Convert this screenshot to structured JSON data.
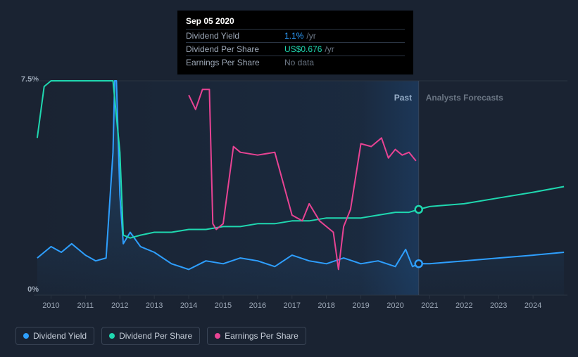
{
  "tooltip": {
    "date": "Sep 05 2020",
    "rows": [
      {
        "label": "Dividend Yield",
        "value": "1.1%",
        "unit": "/yr",
        "color": "val-blue"
      },
      {
        "label": "Dividend Per Share",
        "value": "US$0.676",
        "unit": "/yr",
        "color": "val-teal"
      },
      {
        "label": "Earnings Per Share",
        "value": "No data",
        "unit": "",
        "color": "val-muted"
      }
    ]
  },
  "chart": {
    "y_max_label": "7.5%",
    "y_min_label": "0%",
    "x_labels": [
      "2010",
      "2011",
      "2012",
      "2013",
      "2014",
      "2015",
      "2016",
      "2017",
      "2018",
      "2019",
      "2020",
      "2021",
      "2022",
      "2023",
      "2024"
    ],
    "x_range": [
      2009.5,
      2025.0
    ],
    "y_range": [
      0,
      7.5
    ],
    "region_past_label": "Past",
    "region_forecast_label": "Analysts Forecasts",
    "past_split_x": 2020.68,
    "hover_x": 2020.68,
    "colors": {
      "dividend_yield": "#2e9fff",
      "dividend_per_share": "#1fd8b0",
      "earnings_per_share": "#e84393",
      "grid": "#2a3442",
      "region_past": "#1f5c9e",
      "marker_fill": "#1a2332"
    },
    "series": {
      "dividend_yield": [
        [
          2009.6,
          1.3
        ],
        [
          2010.0,
          1.7
        ],
        [
          2010.3,
          1.5
        ],
        [
          2010.6,
          1.8
        ],
        [
          2011.0,
          1.4
        ],
        [
          2011.3,
          1.2
        ],
        [
          2011.6,
          1.3
        ],
        [
          2011.8,
          5.0
        ],
        [
          2011.85,
          7.5
        ],
        [
          2011.9,
          7.5
        ],
        [
          2012.0,
          3.5
        ],
        [
          2012.1,
          1.8
        ],
        [
          2012.3,
          2.2
        ],
        [
          2012.6,
          1.7
        ],
        [
          2013.0,
          1.5
        ],
        [
          2013.5,
          1.1
        ],
        [
          2014.0,
          0.9
        ],
        [
          2014.5,
          1.2
        ],
        [
          2015.0,
          1.1
        ],
        [
          2015.5,
          1.3
        ],
        [
          2016.0,
          1.2
        ],
        [
          2016.5,
          1.0
        ],
        [
          2017.0,
          1.4
        ],
        [
          2017.5,
          1.2
        ],
        [
          2018.0,
          1.1
        ],
        [
          2018.5,
          1.3
        ],
        [
          2019.0,
          1.1
        ],
        [
          2019.5,
          1.2
        ],
        [
          2020.0,
          1.0
        ],
        [
          2020.3,
          1.6
        ],
        [
          2020.5,
          1.0
        ],
        [
          2020.68,
          1.1
        ],
        [
          2021.0,
          1.1
        ],
        [
          2022.0,
          1.2
        ],
        [
          2023.0,
          1.3
        ],
        [
          2024.0,
          1.4
        ],
        [
          2024.9,
          1.5
        ]
      ],
      "dividend_per_share": [
        [
          2009.6,
          5.5
        ],
        [
          2009.8,
          7.3
        ],
        [
          2010.0,
          7.5
        ],
        [
          2011.0,
          7.5
        ],
        [
          2011.8,
          7.5
        ],
        [
          2012.0,
          5.0
        ],
        [
          2012.1,
          2.1
        ],
        [
          2012.3,
          2.0
        ],
        [
          2012.6,
          2.1
        ],
        [
          2013.0,
          2.2
        ],
        [
          2013.5,
          2.2
        ],
        [
          2014.0,
          2.3
        ],
        [
          2014.5,
          2.3
        ],
        [
          2015.0,
          2.4
        ],
        [
          2015.5,
          2.4
        ],
        [
          2016.0,
          2.5
        ],
        [
          2016.5,
          2.5
        ],
        [
          2017.0,
          2.6
        ],
        [
          2017.5,
          2.6
        ],
        [
          2018.0,
          2.7
        ],
        [
          2018.5,
          2.7
        ],
        [
          2019.0,
          2.7
        ],
        [
          2019.5,
          2.8
        ],
        [
          2020.0,
          2.9
        ],
        [
          2020.4,
          2.9
        ],
        [
          2020.68,
          3.0
        ],
        [
          2021.0,
          3.1
        ],
        [
          2022.0,
          3.2
        ],
        [
          2023.0,
          3.4
        ],
        [
          2024.0,
          3.6
        ],
        [
          2024.9,
          3.8
        ]
      ],
      "earnings_per_share": [
        [
          2014.0,
          7.0
        ],
        [
          2014.2,
          6.5
        ],
        [
          2014.4,
          7.2
        ],
        [
          2014.6,
          7.2
        ],
        [
          2014.7,
          2.5
        ],
        [
          2014.8,
          2.3
        ],
        [
          2015.0,
          2.5
        ],
        [
          2015.3,
          5.2
        ],
        [
          2015.5,
          5.0
        ],
        [
          2016.0,
          4.9
        ],
        [
          2016.5,
          5.0
        ],
        [
          2017.0,
          2.8
        ],
        [
          2017.3,
          2.6
        ],
        [
          2017.5,
          3.2
        ],
        [
          2017.8,
          2.6
        ],
        [
          2018.0,
          2.4
        ],
        [
          2018.2,
          2.2
        ],
        [
          2018.35,
          0.9
        ],
        [
          2018.5,
          2.4
        ],
        [
          2018.7,
          3.0
        ],
        [
          2019.0,
          5.3
        ],
        [
          2019.3,
          5.2
        ],
        [
          2019.6,
          5.5
        ],
        [
          2019.8,
          4.8
        ],
        [
          2020.0,
          5.1
        ],
        [
          2020.2,
          4.9
        ],
        [
          2020.4,
          5.0
        ],
        [
          2020.6,
          4.7
        ]
      ]
    },
    "markers": [
      {
        "x": 2020.68,
        "y": 3.0,
        "color": "#1fd8b0"
      },
      {
        "x": 2020.68,
        "y": 1.1,
        "color": "#2e9fff"
      }
    ]
  },
  "legend": [
    {
      "label": "Dividend Yield",
      "color": "#2e9fff"
    },
    {
      "label": "Dividend Per Share",
      "color": "#1fd8b0"
    },
    {
      "label": "Earnings Per Share",
      "color": "#e84393"
    }
  ]
}
